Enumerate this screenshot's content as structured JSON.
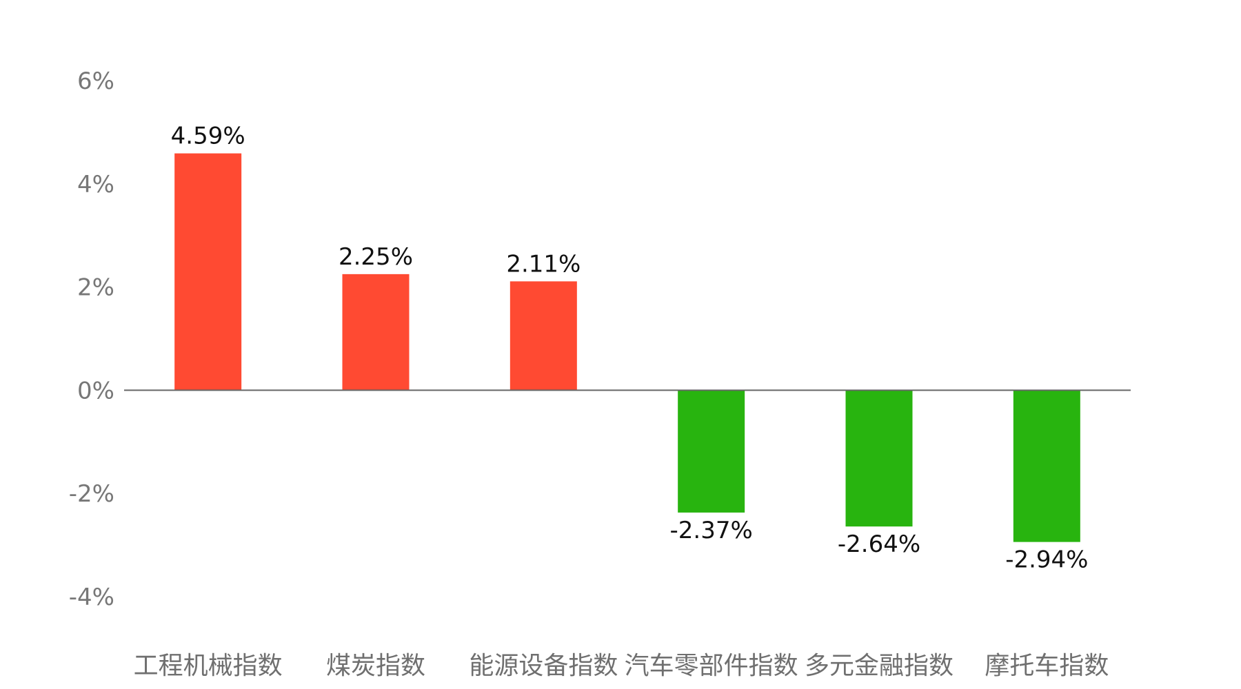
{
  "chart_data": {
    "type": "bar",
    "categories": [
      "工程机械指数",
      "煤炭指数",
      "能源设备指数",
      "汽车零部件指数",
      "多元金融指数",
      "摩托车指数"
    ],
    "values": [
      4.59,
      2.25,
      2.11,
      -2.37,
      -2.64,
      -2.94
    ],
    "value_labels": [
      "4.59%",
      "2.25%",
      "2.11%",
      "-2.37%",
      "-2.64%",
      "-2.94%"
    ],
    "yticks": [
      6,
      4,
      2,
      0,
      -2,
      -4
    ],
    "ytick_labels": [
      "6%",
      "4%",
      "2%",
      "0%",
      "-2%",
      "-4%"
    ],
    "ylim": [
      -4,
      6
    ],
    "grid": false,
    "title": "",
    "xlabel": "",
    "ylabel": "",
    "colors": {
      "positive": "#ff4a32",
      "negative": "#28b40f",
      "axis": "#666666"
    }
  }
}
